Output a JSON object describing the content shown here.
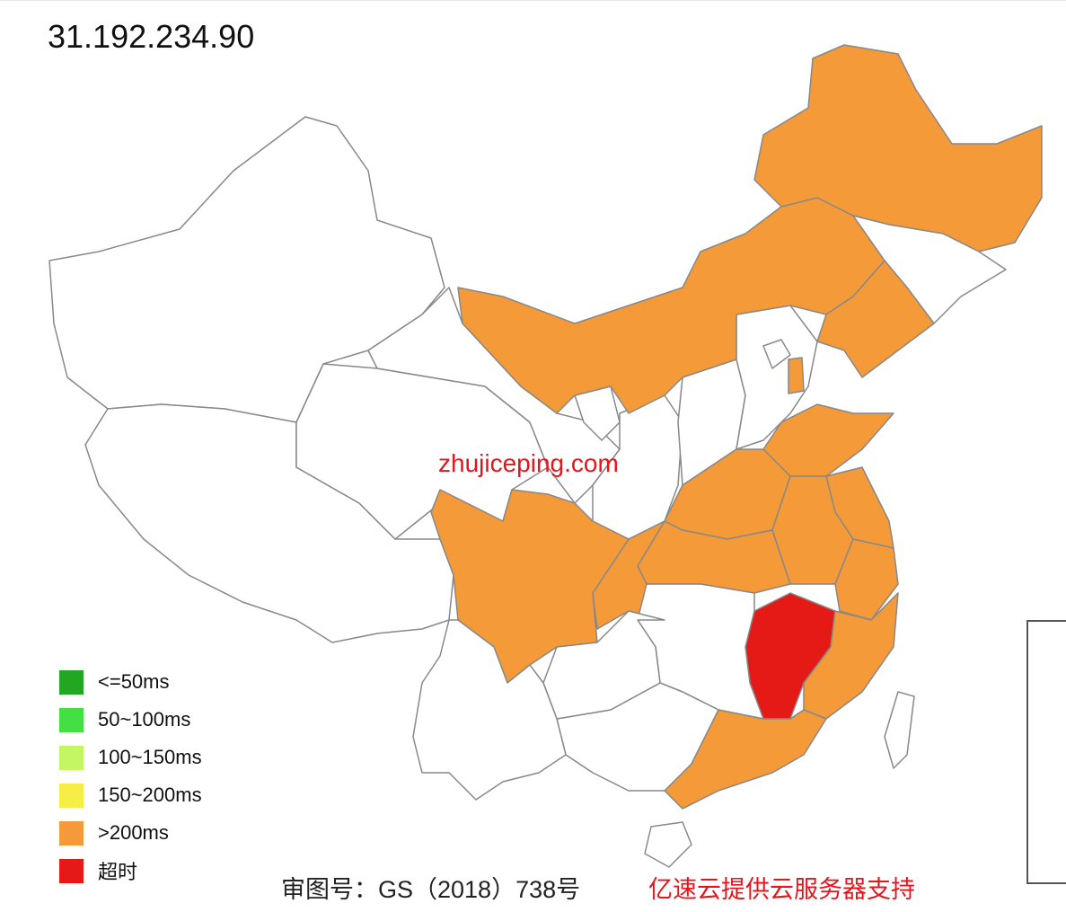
{
  "ip": "31.192.234.90",
  "watermark": "zhujiceping.com",
  "legend": [
    {
      "label": "<=50ms",
      "color": "#22a722"
    },
    {
      "label": "50~100ms",
      "color": "#42e042"
    },
    {
      "label": "100~150ms",
      "color": "#c2f762"
    },
    {
      "label": "150~200ms",
      "color": "#f6ee44"
    },
    {
      "label": ">200ms",
      "color": "#f59a38"
    },
    {
      "label": "超时",
      "color": "#e51a17"
    }
  ],
  "colors": {
    "none": "#ffffff",
    "over200": "#f59a38",
    "timeout": "#e51a17"
  },
  "regions": {
    "xinjiang": "none",
    "tibet": "none",
    "qinghai": "none",
    "gansu": "none",
    "inner_mongolia": "over200",
    "heilongjiang": "over200",
    "jilin": "none",
    "liaoning": "over200",
    "hebei": "none",
    "beijing": "none",
    "tianjin": "over200",
    "shanxi": "none",
    "shaanxi": "none",
    "ningxia": "none",
    "shandong": "over200",
    "henan": "over200",
    "jiangsu": "over200",
    "anhui": "over200",
    "hubei": "over200",
    "zhejiang": "over200",
    "fujian": "over200",
    "jiangxi": "timeout",
    "hunan": "none",
    "guangdong": "over200",
    "guangxi": "none",
    "guizhou": "none",
    "yunnan": "none",
    "sichuan": "over200",
    "chongqing": "over200",
    "hainan": "none",
    "taiwan": "none"
  },
  "footer": {
    "approval": "审图号：GS（2018）738号",
    "sponsor": "亿速云提供云服务器支持"
  }
}
